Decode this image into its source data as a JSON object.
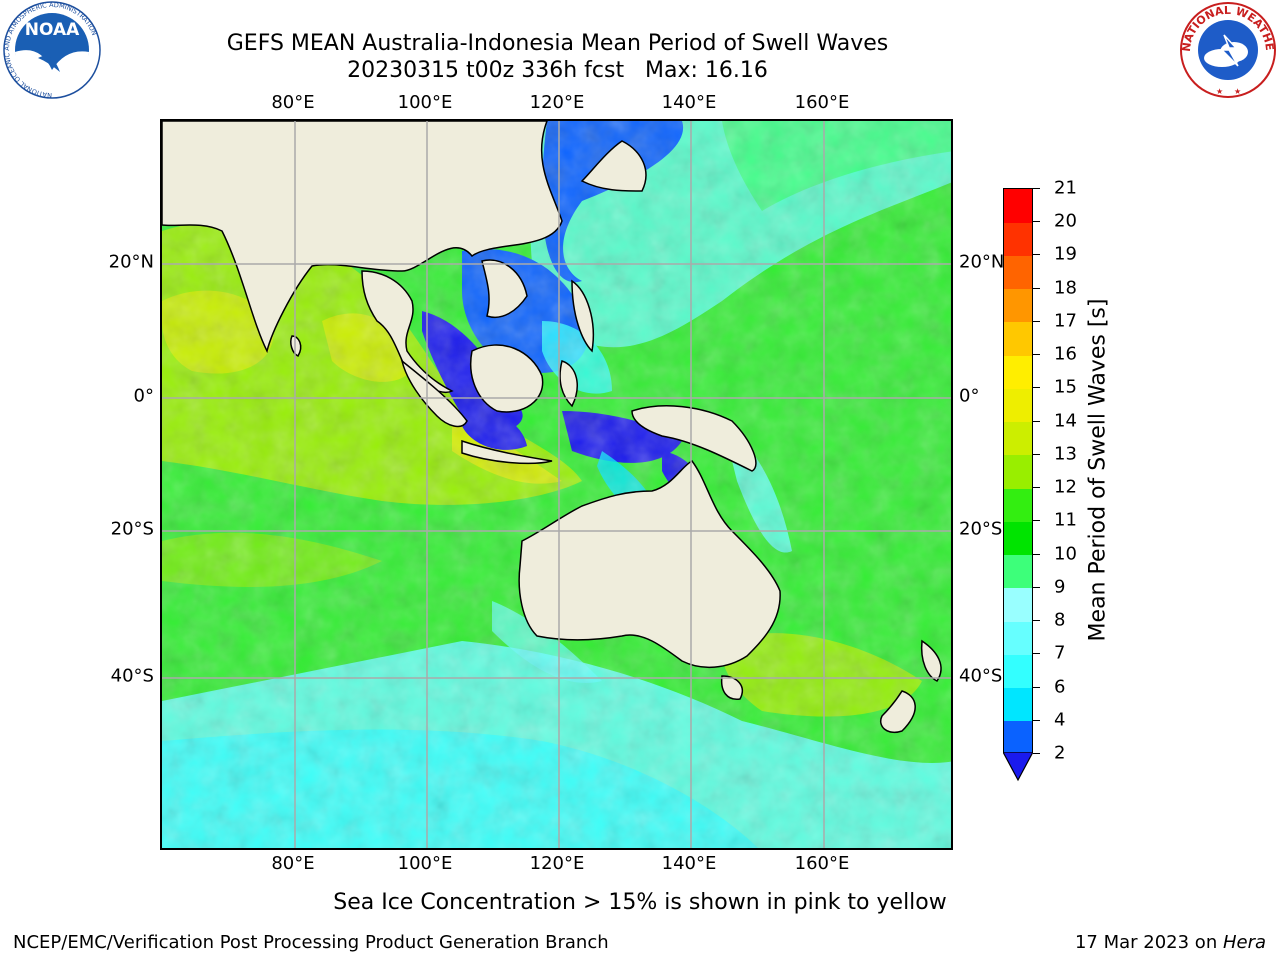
{
  "title": {
    "line1": "GEFS MEAN Australia-Indonesia Mean Period of Swell Waves",
    "line2": "20230315 t00z 336h fcst   Max: 16.16"
  },
  "logos": {
    "left": {
      "name": "NOAA",
      "ring_text": "NATIONAL OCEANIC AND ATMOSPHERIC ADMINISTRATION",
      "bottom_text": "U.S. DEPARTMENT OF COMMERCE"
    },
    "right": {
      "ring_text": "NATIONAL WEATHER SERVICE"
    }
  },
  "map": {
    "lon_ticks": [
      "80°E",
      "100°E",
      "120°E",
      "140°E",
      "160°E"
    ],
    "lat_ticks": [
      "20°N",
      "0°",
      "20°S",
      "40°S"
    ],
    "ocean_color": "#33ee33",
    "land_color": "#efeddc"
  },
  "colorbar": {
    "title": "Mean Period of Swell Waves [s]",
    "levels": [
      "2",
      "4",
      "6",
      "7",
      "8",
      "9",
      "10",
      "11",
      "12",
      "13",
      "14",
      "15",
      "16",
      "17",
      "18",
      "19",
      "20",
      "21"
    ],
    "colors": [
      "#0a62ff",
      "#00e6ff",
      "#33ffff",
      "#66ffff",
      "#99ffff",
      "#3dff7a",
      "#00e400",
      "#33ee11",
      "#99ee00",
      "#ccee00",
      "#eeee00",
      "#ffee00",
      "#ffc800",
      "#ff9600",
      "#ff6400",
      "#ff3200",
      "#ff0000"
    ],
    "under_color": "#1a1aee"
  },
  "footnote": "Sea Ice Concentration > 15% is shown in pink to yellow",
  "credits": {
    "left": "NCEP/EMC/Verification Post Processing Product Generation Branch",
    "right_prefix": "17 Mar 2023 on ",
    "right_host": "Hera"
  }
}
